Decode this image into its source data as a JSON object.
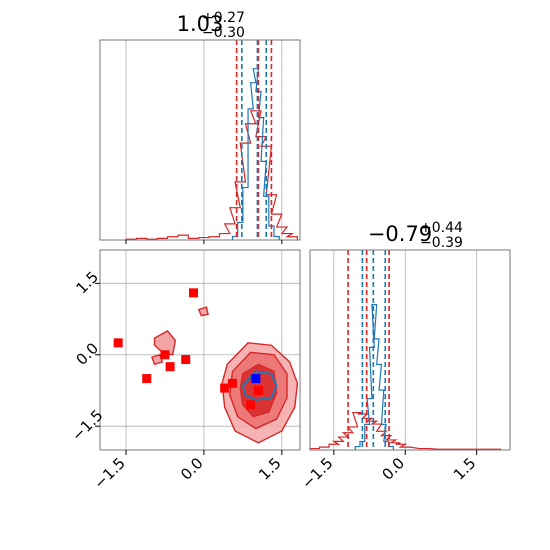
{
  "chart_data": {
    "type": "corner",
    "colors": {
      "primary": "#d62728",
      "secondary": "#1f77b4",
      "truth": "#0000ff",
      "points": "#ff0000",
      "grid": "#b0b0b0"
    },
    "axes": {
      "x_param1": {
        "range": [
          -2.0,
          1.85
        ],
        "ticks": [
          -1.5,
          0.0,
          1.5
        ],
        "tick_labels": [
          "−1.5",
          "0.0",
          "1.5"
        ]
      },
      "y_param2": {
        "range": [
          -2.0,
          2.2
        ],
        "ticks": [
          1.5,
          0.0,
          -1.5
        ],
        "tick_labels": [
          "1.5",
          "0.0",
          "−1.5"
        ]
      },
      "x_param2": {
        "range": [
          -2.0,
          2.2
        ],
        "ticks": [
          -1.5,
          0.0,
          1.5
        ],
        "tick_labels": [
          "−1.5",
          "0.0",
          "1.5"
        ]
      }
    },
    "grid": true,
    "marginals": [
      {
        "param": 1,
        "title": {
          "value": "1.03",
          "plus": "+0.27",
          "minus": "−0.30"
        },
        "quantiles_red": [
          0.63,
          1.05,
          1.3
        ],
        "quantiles_blue": [
          0.73,
          1.03,
          1.2
        ],
        "hist_red": [
          [
            -1.4,
            0.005
          ],
          [
            -1.2,
            0.01
          ],
          [
            -1.0,
            0.005
          ],
          [
            -0.8,
            0.01
          ],
          [
            -0.6,
            0.02
          ],
          [
            -0.4,
            0.03
          ],
          [
            -0.2,
            0.01
          ],
          [
            0.0,
            0.015
          ],
          [
            0.2,
            0.02
          ],
          [
            0.4,
            0.04
          ],
          [
            0.5,
            0.1
          ],
          [
            0.6,
            0.2
          ],
          [
            0.7,
            0.36
          ],
          [
            0.8,
            0.6
          ],
          [
            0.9,
            0.72
          ],
          [
            1.0,
            0.8
          ],
          [
            1.1,
            0.64
          ],
          [
            1.2,
            0.58
          ],
          [
            1.3,
            0.28
          ],
          [
            1.4,
            0.16
          ],
          [
            1.5,
            0.08
          ],
          [
            1.6,
            0.04
          ],
          [
            1.7,
            0.02
          ]
        ],
        "hist_blue": [
          [
            0.6,
            0.02
          ],
          [
            0.7,
            0.1
          ],
          [
            0.8,
            0.3
          ],
          [
            0.9,
            0.75
          ],
          [
            0.95,
            0.9
          ],
          [
            1.0,
            0.98
          ],
          [
            1.05,
            0.85
          ],
          [
            1.1,
            0.7
          ],
          [
            1.15,
            0.45
          ],
          [
            1.2,
            0.25
          ],
          [
            1.3,
            0.08
          ],
          [
            1.4,
            0.02
          ]
        ]
      },
      {
        "param": 2,
        "title": {
          "value": "−0.79",
          "plus": "+0.44",
          "minus": "−0.39"
        },
        "quantiles_red": [
          -1.2,
          -0.81,
          -0.34
        ],
        "quantiles_blue": [
          -0.9,
          -0.67,
          -0.42
        ],
        "hist_red": [
          [
            -1.9,
            0.01
          ],
          [
            -1.7,
            0.02
          ],
          [
            -1.5,
            0.04
          ],
          [
            -1.4,
            0.06
          ],
          [
            -1.3,
            0.09
          ],
          [
            -1.2,
            0.12
          ],
          [
            -1.1,
            0.16
          ],
          [
            -1.0,
            0.26
          ],
          [
            -0.9,
            0.25
          ],
          [
            -0.8,
            0.22
          ],
          [
            -0.7,
            0.2
          ],
          [
            -0.6,
            0.18
          ],
          [
            -0.5,
            0.13
          ],
          [
            -0.4,
            0.1
          ],
          [
            -0.3,
            0.07
          ],
          [
            -0.2,
            0.05
          ],
          [
            -0.1,
            0.04
          ],
          [
            0.0,
            0.02
          ],
          [
            0.4,
            0.01
          ],
          [
            0.8,
            0.005
          ],
          [
            1.6,
            0.005
          ],
          [
            1.9,
            0.005
          ]
        ],
        "hist_blue": [
          [
            -1.0,
            0.02
          ],
          [
            -0.9,
            0.05
          ],
          [
            -0.8,
            0.15
          ],
          [
            -0.75,
            0.3
          ],
          [
            -0.7,
            0.6
          ],
          [
            -0.65,
            0.85
          ],
          [
            -0.6,
            0.65
          ],
          [
            -0.55,
            0.5
          ],
          [
            -0.5,
            0.35
          ],
          [
            -0.45,
            0.15
          ],
          [
            -0.4,
            0.05
          ],
          [
            -0.3,
            0.02
          ]
        ]
      }
    ],
    "scatter_points": [
      [
        -1.65,
        0.25
      ],
      [
        -1.1,
        -0.5
      ],
      [
        -0.75,
        0.0
      ],
      [
        -0.65,
        -0.25
      ],
      [
        -0.35,
        -0.1
      ],
      [
        -0.2,
        1.3
      ],
      [
        0.4,
        -0.7
      ],
      [
        0.55,
        -0.6
      ],
      [
        0.9,
        -1.05
      ],
      [
        1.05,
        -0.75
      ]
    ],
    "truth_point": [
      1.0,
      -0.5
    ],
    "contours_red": [
      [
        [
          0.45,
          -0.2
        ],
        [
          0.85,
          0.25
        ],
        [
          1.3,
          0.2
        ],
        [
          1.65,
          -0.15
        ],
        [
          1.8,
          -0.6
        ],
        [
          1.75,
          -1.1
        ],
        [
          1.5,
          -1.6
        ],
        [
          1.05,
          -1.85
        ],
        [
          0.6,
          -1.6
        ],
        [
          0.4,
          -1.1
        ],
        [
          0.35,
          -0.6
        ]
      ],
      [
        [
          0.55,
          -0.35
        ],
        [
          0.9,
          0.05
        ],
        [
          1.35,
          0.0
        ],
        [
          1.6,
          -0.4
        ],
        [
          1.6,
          -0.9
        ],
        [
          1.4,
          -1.35
        ],
        [
          1.0,
          -1.55
        ],
        [
          0.65,
          -1.3
        ],
        [
          0.5,
          -0.85
        ]
      ],
      [
        [
          0.75,
          -0.4
        ],
        [
          1.05,
          -0.2
        ],
        [
          1.35,
          -0.35
        ],
        [
          1.4,
          -0.8
        ],
        [
          1.25,
          -1.2
        ],
        [
          0.95,
          -1.3
        ],
        [
          0.75,
          -1.05
        ],
        [
          0.7,
          -0.7
        ]
      ]
    ],
    "contours_blue": [
      [
        [
          0.75,
          -0.65
        ],
        [
          1.0,
          -0.35
        ],
        [
          1.3,
          -0.4
        ],
        [
          1.4,
          -0.65
        ],
        [
          1.3,
          -0.9
        ],
        [
          1.0,
          -0.95
        ],
        [
          0.8,
          -0.85
        ]
      ]
    ],
    "islands_red": [
      [
        [
          -0.95,
          0.35
        ],
        [
          -0.7,
          0.5
        ],
        [
          -0.55,
          0.3
        ],
        [
          -0.6,
          0.0
        ],
        [
          -0.8,
          0.05
        ],
        [
          -0.95,
          0.2
        ]
      ],
      [
        [
          -1.0,
          -0.05
        ],
        [
          -0.85,
          0.0
        ],
        [
          -0.8,
          -0.15
        ],
        [
          -0.95,
          -0.2
        ]
      ],
      [
        [
          -0.1,
          0.95
        ],
        [
          0.05,
          1.0
        ],
        [
          0.08,
          0.85
        ],
        [
          -0.05,
          0.82
        ]
      ]
    ]
  }
}
